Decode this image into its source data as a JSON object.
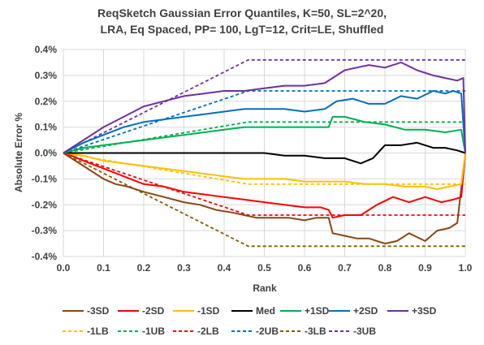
{
  "chart_data": {
    "type": "line",
    "title_line1": "ReqSketch Gaussian Error Quantiles, K=50, SL=2^20,",
    "title_line2": "LRA, Eq Spaced, PP= 100, LgT=12, Crit=LE, Shuffled",
    "xlabel": "Rank",
    "ylabel": "Absolute Error %",
    "xlim": [
      0,
      1
    ],
    "ylim": [
      -0.4,
      0.4
    ],
    "x_ticks": [
      "0.0",
      "0.1",
      "0.2",
      "0.3",
      "0.4",
      "0.5",
      "0.6",
      "0.7",
      "0.8",
      "0.9",
      "1.0"
    ],
    "y_ticks": [
      "0.4%",
      "0.3%",
      "0.2%",
      "0.1%",
      "0.0%",
      "-0.1%",
      "-0.2%",
      "-0.3%",
      "-0.4%"
    ],
    "grid": true,
    "legend_position": "bottom",
    "series": [
      {
        "name": "-3SD",
        "color": "#8B4513",
        "dash": false,
        "points": [
          [
            0,
            0
          ],
          [
            0.02,
            -0.02
          ],
          [
            0.05,
            -0.05
          ],
          [
            0.08,
            -0.08
          ],
          [
            0.1,
            -0.1
          ],
          [
            0.13,
            -0.12
          ],
          [
            0.16,
            -0.13
          ],
          [
            0.2,
            -0.15
          ],
          [
            0.25,
            -0.17
          ],
          [
            0.3,
            -0.19
          ],
          [
            0.34,
            -0.2
          ],
          [
            0.38,
            -0.22
          ],
          [
            0.42,
            -0.23
          ],
          [
            0.45,
            -0.24
          ],
          [
            0.48,
            -0.25
          ],
          [
            0.52,
            -0.25
          ],
          [
            0.56,
            -0.25
          ],
          [
            0.6,
            -0.26
          ],
          [
            0.63,
            -0.25
          ],
          [
            0.66,
            -0.25
          ],
          [
            0.67,
            -0.31
          ],
          [
            0.7,
            -0.32
          ],
          [
            0.73,
            -0.33
          ],
          [
            0.76,
            -0.33
          ],
          [
            0.8,
            -0.35
          ],
          [
            0.83,
            -0.34
          ],
          [
            0.86,
            -0.31
          ],
          [
            0.9,
            -0.34
          ],
          [
            0.93,
            -0.3
          ],
          [
            0.96,
            -0.29
          ],
          [
            0.98,
            -0.27
          ],
          [
            1.0,
            0.0
          ]
        ]
      },
      {
        "name": "-2SD",
        "color": "#FF0000",
        "dash": false,
        "points": [
          [
            0,
            0
          ],
          [
            0.02,
            -0.01
          ],
          [
            0.05,
            -0.03
          ],
          [
            0.1,
            -0.06
          ],
          [
            0.15,
            -0.09
          ],
          [
            0.2,
            -0.12
          ],
          [
            0.25,
            -0.13
          ],
          [
            0.3,
            -0.15
          ],
          [
            0.35,
            -0.16
          ],
          [
            0.4,
            -0.17
          ],
          [
            0.45,
            -0.18
          ],
          [
            0.5,
            -0.19
          ],
          [
            0.55,
            -0.2
          ],
          [
            0.6,
            -0.21
          ],
          [
            0.64,
            -0.21
          ],
          [
            0.66,
            -0.22
          ],
          [
            0.67,
            -0.25
          ],
          [
            0.7,
            -0.24
          ],
          [
            0.74,
            -0.24
          ],
          [
            0.78,
            -0.2
          ],
          [
            0.82,
            -0.17
          ],
          [
            0.86,
            -0.19
          ],
          [
            0.9,
            -0.17
          ],
          [
            0.94,
            -0.19
          ],
          [
            0.97,
            -0.18
          ],
          [
            0.99,
            -0.17
          ],
          [
            1.0,
            0.0
          ]
        ]
      },
      {
        "name": "-1SD",
        "color": "#FFC000",
        "dash": false,
        "points": [
          [
            0,
            0
          ],
          [
            0.05,
            -0.01
          ],
          [
            0.1,
            -0.03
          ],
          [
            0.15,
            -0.04
          ],
          [
            0.2,
            -0.05
          ],
          [
            0.25,
            -0.06
          ],
          [
            0.3,
            -0.07
          ],
          [
            0.35,
            -0.08
          ],
          [
            0.4,
            -0.09
          ],
          [
            0.45,
            -0.1
          ],
          [
            0.5,
            -0.1
          ],
          [
            0.55,
            -0.1
          ],
          [
            0.6,
            -0.11
          ],
          [
            0.65,
            -0.11
          ],
          [
            0.7,
            -0.11
          ],
          [
            0.75,
            -0.12
          ],
          [
            0.8,
            -0.12
          ],
          [
            0.85,
            -0.13
          ],
          [
            0.9,
            -0.13
          ],
          [
            0.93,
            -0.14
          ],
          [
            0.96,
            -0.13
          ],
          [
            0.99,
            -0.12
          ],
          [
            1.0,
            0.0
          ]
        ]
      },
      {
        "name": "Med",
        "color": "#000000",
        "dash": false,
        "points": [
          [
            0,
            0
          ],
          [
            0.1,
            0.0
          ],
          [
            0.2,
            0.0
          ],
          [
            0.3,
            0.0
          ],
          [
            0.4,
            0.0
          ],
          [
            0.5,
            0.0
          ],
          [
            0.55,
            -0.01
          ],
          [
            0.6,
            -0.01
          ],
          [
            0.65,
            -0.02
          ],
          [
            0.7,
            -0.02
          ],
          [
            0.74,
            -0.04
          ],
          [
            0.77,
            -0.02
          ],
          [
            0.8,
            0.03
          ],
          [
            0.84,
            0.03
          ],
          [
            0.88,
            0.04
          ],
          [
            0.92,
            0.02
          ],
          [
            0.95,
            0.02
          ],
          [
            0.98,
            0.01
          ],
          [
            1.0,
            0.0
          ]
        ]
      },
      {
        "name": "+1SD",
        "color": "#00B050",
        "dash": false,
        "points": [
          [
            0,
            0
          ],
          [
            0.05,
            0.02
          ],
          [
            0.1,
            0.03
          ],
          [
            0.15,
            0.04
          ],
          [
            0.2,
            0.05
          ],
          [
            0.25,
            0.06
          ],
          [
            0.3,
            0.07
          ],
          [
            0.35,
            0.08
          ],
          [
            0.4,
            0.09
          ],
          [
            0.45,
            0.1
          ],
          [
            0.5,
            0.1
          ],
          [
            0.55,
            0.1
          ],
          [
            0.6,
            0.1
          ],
          [
            0.65,
            0.1
          ],
          [
            0.66,
            0.1
          ],
          [
            0.67,
            0.14
          ],
          [
            0.7,
            0.14
          ],
          [
            0.75,
            0.12
          ],
          [
            0.8,
            0.11
          ],
          [
            0.85,
            0.09
          ],
          [
            0.9,
            0.09
          ],
          [
            0.95,
            0.08
          ],
          [
            0.99,
            0.09
          ],
          [
            1.0,
            0.0
          ]
        ]
      },
      {
        "name": "+2SD",
        "color": "#0070C0",
        "dash": false,
        "points": [
          [
            0,
            0
          ],
          [
            0.05,
            0.04
          ],
          [
            0.1,
            0.07
          ],
          [
            0.15,
            0.1
          ],
          [
            0.2,
            0.12
          ],
          [
            0.25,
            0.13
          ],
          [
            0.3,
            0.14
          ],
          [
            0.35,
            0.15
          ],
          [
            0.4,
            0.16
          ],
          [
            0.45,
            0.17
          ],
          [
            0.5,
            0.17
          ],
          [
            0.55,
            0.17
          ],
          [
            0.6,
            0.16
          ],
          [
            0.65,
            0.17
          ],
          [
            0.68,
            0.2
          ],
          [
            0.72,
            0.21
          ],
          [
            0.76,
            0.19
          ],
          [
            0.8,
            0.19
          ],
          [
            0.84,
            0.22
          ],
          [
            0.88,
            0.21
          ],
          [
            0.92,
            0.24
          ],
          [
            0.95,
            0.23
          ],
          [
            0.97,
            0.24
          ],
          [
            0.99,
            0.23
          ],
          [
            1.0,
            0.0
          ]
        ]
      },
      {
        "name": "+3SD",
        "color": "#7030A0",
        "dash": false,
        "points": [
          [
            0,
            0
          ],
          [
            0.05,
            0.05
          ],
          [
            0.1,
            0.1
          ],
          [
            0.15,
            0.14
          ],
          [
            0.2,
            0.18
          ],
          [
            0.25,
            0.2
          ],
          [
            0.3,
            0.22
          ],
          [
            0.35,
            0.23
          ],
          [
            0.4,
            0.24
          ],
          [
            0.45,
            0.24
          ],
          [
            0.5,
            0.25
          ],
          [
            0.55,
            0.26
          ],
          [
            0.6,
            0.26
          ],
          [
            0.65,
            0.27
          ],
          [
            0.68,
            0.3
          ],
          [
            0.7,
            0.32
          ],
          [
            0.73,
            0.33
          ],
          [
            0.76,
            0.34
          ],
          [
            0.8,
            0.33
          ],
          [
            0.84,
            0.35
          ],
          [
            0.88,
            0.32
          ],
          [
            0.92,
            0.3
          ],
          [
            0.95,
            0.29
          ],
          [
            0.98,
            0.28
          ],
          [
            0.995,
            0.29
          ],
          [
            1.0,
            0.0
          ]
        ]
      },
      {
        "name": "-1LB",
        "color": "#FFC000",
        "dash": true,
        "points": [
          [
            0,
            0
          ],
          [
            0.46,
            -0.12
          ],
          [
            1.0,
            -0.12
          ]
        ]
      },
      {
        "name": "-1UB",
        "color": "#00B050",
        "dash": true,
        "points": [
          [
            0,
            0
          ],
          [
            0.46,
            0.12
          ],
          [
            1.0,
            0.12
          ]
        ]
      },
      {
        "name": "-2LB",
        "color": "#FF0000",
        "dash": true,
        "points": [
          [
            0,
            0
          ],
          [
            0.46,
            -0.24
          ],
          [
            1.0,
            -0.24
          ]
        ]
      },
      {
        "name": "-2UB",
        "color": "#0070C0",
        "dash": true,
        "points": [
          [
            0,
            0
          ],
          [
            0.46,
            0.24
          ],
          [
            1.0,
            0.24
          ]
        ]
      },
      {
        "name": "-3LB",
        "color": "#7F6000",
        "dash": true,
        "points": [
          [
            0,
            0
          ],
          [
            0.46,
            -0.36
          ],
          [
            1.0,
            -0.36
          ]
        ]
      },
      {
        "name": "-3UB",
        "color": "#7030A0",
        "dash": true,
        "points": [
          [
            0,
            0
          ],
          [
            0.46,
            0.36
          ],
          [
            1.0,
            0.36
          ]
        ]
      }
    ]
  }
}
